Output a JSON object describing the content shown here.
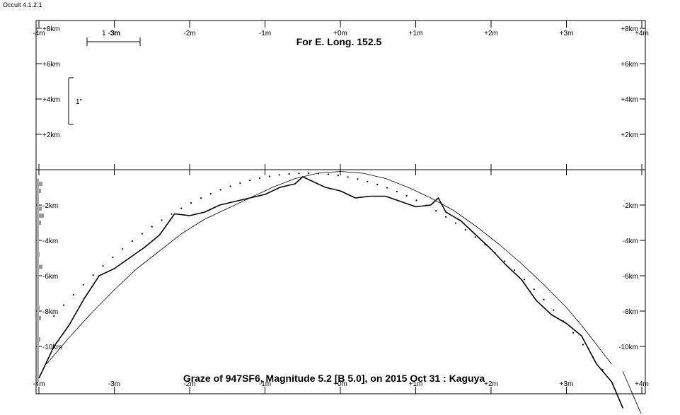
{
  "app": {
    "title": "Occult 4.1.2.1"
  },
  "chart_data": {
    "type": "line",
    "title": "For E. Long. 152.5",
    "footer": "Graze of  947SF6,  Magnitude 5.2 [B 5.0],  on 2015 Oct 31  :  Kaguya",
    "scale_bar_label": "1 -3m",
    "vertical_scale_label": "1\"",
    "x_range_m": [
      -4,
      4
    ],
    "y_range_km": [
      -12,
      8
    ],
    "x_ticks_top": [
      "-4m",
      "-3m",
      "-2m",
      "-1m",
      "+0m",
      "+1m",
      "+2m",
      "+3m",
      "+4m"
    ],
    "x_ticks_bottom": [
      "-4m",
      "-3m",
      "-2m",
      "-1m",
      "+0m",
      "+1m",
      "+2m",
      "+3m",
      "+4m"
    ],
    "y_ticks_left": [
      "+8km",
      "+6km",
      "+4km",
      "+2km",
      "-2km",
      "-4km",
      "-6km",
      "-8km",
      "-10km"
    ],
    "y_ticks_right": [
      "+8km",
      "+6km",
      "+4km",
      "+2km",
      "-2km",
      "-4km",
      "-6km",
      "-8km",
      "-10km"
    ],
    "series": [
      {
        "x": [
          -4.0,
          -3.8,
          -3.6,
          -3.4,
          -3.2,
          -3.0,
          -2.8,
          -2.6,
          -2.4,
          -2.2,
          -2.0,
          -1.8,
          -1.6,
          -1.4,
          -1.2,
          -1.0,
          -0.8,
          -0.6,
          -0.5,
          -0.4,
          -0.2,
          0.0,
          0.2,
          0.4,
          0.6,
          0.8,
          1.0,
          1.2,
          1.3,
          1.4,
          1.6,
          1.8,
          2.0,
          2.2,
          2.4,
          2.6,
          2.8,
          3.0,
          3.2,
          3.4,
          3.6,
          3.75
        ],
        "y": [
          -11.8,
          -10.0,
          -8.8,
          -7.3,
          -6.0,
          -5.6,
          -5.0,
          -4.4,
          -3.7,
          -2.5,
          -2.6,
          -2.4,
          -2.0,
          -1.8,
          -1.6,
          -1.4,
          -1.0,
          -0.8,
          -0.4,
          -0.6,
          -1.0,
          -1.2,
          -1.6,
          -1.5,
          -1.5,
          -1.8,
          -2.1,
          -2.0,
          -1.6,
          -2.4,
          -2.9,
          -3.7,
          -4.5,
          -5.4,
          -6.2,
          -7.4,
          -8.2,
          -8.7,
          -9.4,
          -11.0,
          -12.0,
          -13.5
        ]
      },
      {
        "x": [
          -3.9,
          -3.6,
          -3.3,
          -3.0,
          -2.7,
          -2.4,
          -2.1,
          -1.8,
          -1.5,
          -1.2,
          -0.9,
          -0.6,
          -0.3,
          0.0,
          0.3,
          0.6,
          0.9,
          1.2,
          1.5,
          1.8,
          2.1,
          2.4,
          2.7,
          3.0,
          3.2,
          3.4,
          3.6
        ],
        "y": [
          -11.0,
          -9.5,
          -8.1,
          -6.8,
          -5.6,
          -4.6,
          -3.6,
          -2.8,
          -2.2,
          -1.6,
          -1.0,
          -0.5,
          -0.2,
          -0.1,
          -0.2,
          -0.5,
          -1.0,
          -1.6,
          -2.3,
          -3.2,
          -4.2,
          -5.3,
          -6.5,
          -7.8,
          -8.8,
          -9.9,
          -11.0
        ]
      }
    ]
  }
}
